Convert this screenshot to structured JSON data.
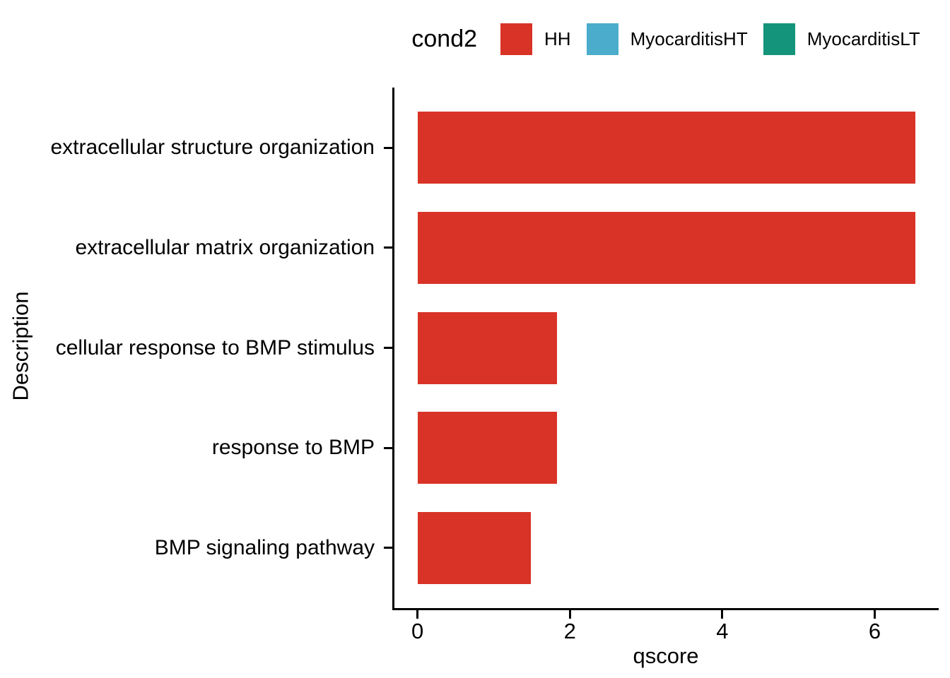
{
  "legend": {
    "title": "cond2",
    "entries": [
      {
        "label": "HH",
        "color": "#D93327"
      },
      {
        "label": "MyocarditisHT",
        "color": "#4BACCB"
      },
      {
        "label": "MyocarditisLT",
        "color": "#14947B"
      }
    ]
  },
  "chart_data": {
    "type": "bar",
    "orientation": "horizontal",
    "title": "",
    "xlabel": "qscore",
    "ylabel": "Description",
    "categories": [
      "extracellular structure organization",
      "extracellular matrix organization",
      "cellular response to BMP stimulus",
      "response to BMP",
      "BMP signaling pathway"
    ],
    "series": [
      {
        "name": "HH",
        "color": "#D93327",
        "values": [
          6.53,
          6.53,
          1.83,
          1.83,
          1.49
        ]
      }
    ],
    "xticks": [
      0,
      2,
      4,
      6
    ],
    "xlim": [
      -0.33,
      6.84
    ],
    "grid": false,
    "legend_position": "top",
    "legend_title": "cond2"
  }
}
